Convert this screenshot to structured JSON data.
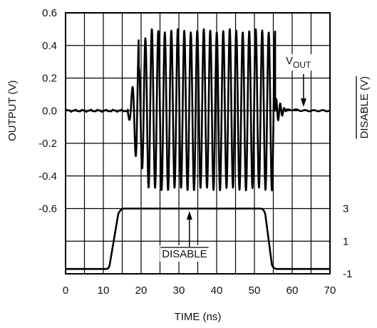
{
  "chart_data": {
    "type": "line",
    "xlabel": "TIME (ns)",
    "ylabel_left": "OUTPUT (V)",
    "ylabel_right": "DISABLE (V)",
    "xlim": [
      0,
      70
    ],
    "ylim_left": [
      -0.6,
      0.6
    ],
    "x_ticks": [
      "0",
      "10",
      "20",
      "30",
      "40",
      "50",
      "60",
      "70"
    ],
    "y_ticks_left": [
      "0.6",
      "0.4",
      "0.2",
      "0.0",
      "-0.2",
      "-0.4",
      "-0.6"
    ],
    "y_ticks_right": [
      "3",
      "1",
      "-1"
    ],
    "grid": true,
    "annotations": {
      "vout_main": "V",
      "vout_sub": "OUT",
      "disable_label": "DISABLE"
    },
    "series": [
      {
        "name": "VOUT",
        "unit": "V",
        "envelope": {
          "quiet_before_ns": [
            0,
            16.5
          ],
          "turn_on_ns": [
            16.5,
            21
          ],
          "oscillation_ns": [
            21,
            55.5
          ],
          "turn_off_ns": [
            55.5,
            58.5
          ],
          "quiet_after_ns": [
            58.5,
            70
          ]
        },
        "peak_max": 0.49,
        "peak_min": -0.48,
        "cycles": 21,
        "baseline": 0.0
      },
      {
        "name": "DISABLE",
        "unit": "V",
        "low": -0.7,
        "high": 3,
        "rise_ns": [
          11.5,
          14.5
        ],
        "fall_ns": [
          52.5,
          55.0
        ],
        "points": [
          [
            0,
            -0.7
          ],
          [
            11.5,
            -0.7
          ],
          [
            14.5,
            3
          ],
          [
            52.5,
            3
          ],
          [
            55.0,
            -0.7
          ],
          [
            70,
            -0.7
          ]
        ]
      }
    ]
  }
}
